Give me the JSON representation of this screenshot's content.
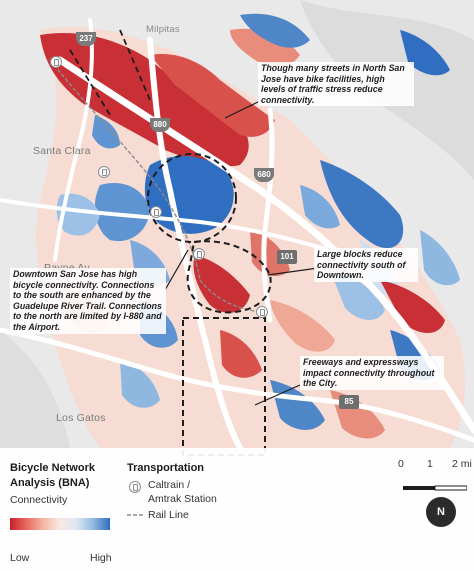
{
  "places": {
    "milpitas": "Milpitas",
    "santa_clara": "Santa Clara",
    "payne_av": "Payne Av",
    "los_gatos": "Los Gatos"
  },
  "shields": {
    "i237": "237",
    "i880": "880",
    "i680": "680",
    "us101": "101",
    "sr85": "85"
  },
  "callouts": {
    "north_san_jose": "Though many streets in North San Jose have bike facilities, high levels of traffic stress reduce connectivity.",
    "large_blocks": "Large blocks reduce connectivity south of Downtown.",
    "downtown": "Downtown San Jose has high bicycle connectivity. Connections to the south are enhanced by the Guadelupe River Trail. Connections to the north are limited by I-880 and the Airport.",
    "freeways": "Freeways and expressways impact connectivity throughout the City."
  },
  "legend": {
    "title_line1": "Bicycle Network",
    "title_line2": "Analysis (BNA)",
    "connectivity_label": "Connectivity",
    "low_label": "Low",
    "high_label": "High",
    "transport_title": "Transportation",
    "station_label_line1": "Caltrain /",
    "station_label_line2": "Amtrak Station",
    "rail_label": "Rail Line"
  },
  "scale": {
    "tick0": "0",
    "tick1": "1",
    "tick2": "2 mi"
  },
  "north_arrow": "N",
  "colors": {
    "low": "#c5212b",
    "mid_low": "#f3b7a4",
    "neutral": "#f9e8e2",
    "mid_high": "#8fb8e0",
    "high": "#2f6ec0",
    "basemap": "#e6e6e6",
    "freeway": "#ffffff",
    "rail": "#8c8c8c"
  }
}
